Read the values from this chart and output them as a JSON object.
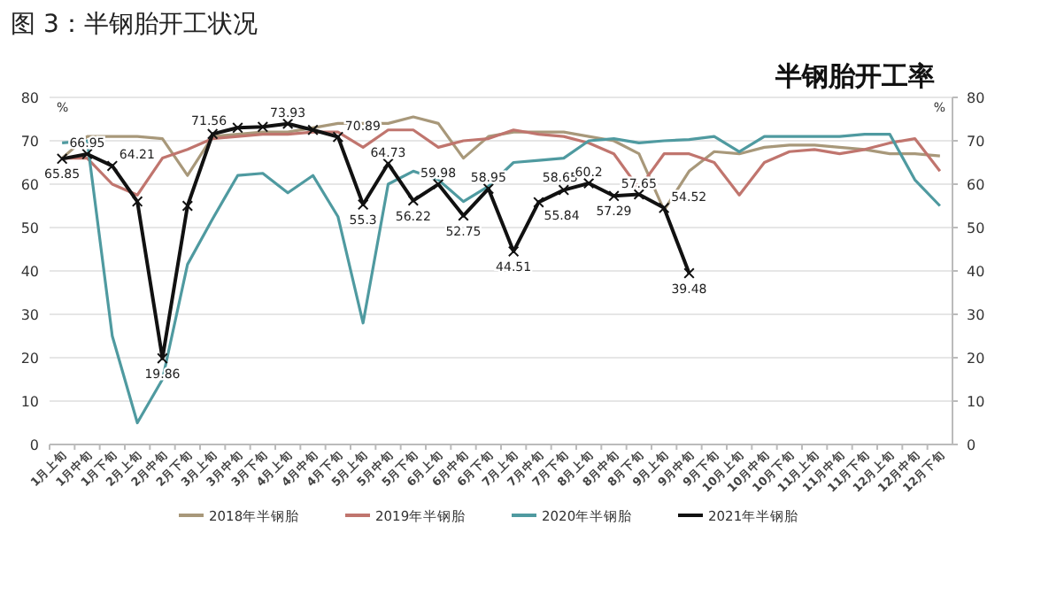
{
  "chart_data": {
    "type": "line",
    "title": "图 3：半钢胎开工状况",
    "subtitle": "半钢胎开工率",
    "ylabel": "%",
    "y2label": "%",
    "categories": [
      "1月上旬",
      "1月中旬",
      "1月下旬",
      "2月上旬",
      "2月中旬",
      "2月下旬",
      "3月上旬",
      "3月中旬",
      "3月下旬",
      "4月上旬",
      "4月中旬",
      "4月下旬",
      "5月上旬",
      "5月中旬",
      "5月下旬",
      "6月上旬",
      "6月中旬",
      "6月下旬",
      "7月上旬",
      "7月中旬",
      "7月下旬",
      "8月上旬",
      "8月中旬",
      "8月下旬",
      "9月上旬",
      "9月中旬",
      "9月下旬",
      "10月上旬",
      "10月中旬",
      "10月下旬",
      "11月上旬",
      "11月中旬",
      "11月下旬",
      "12月上旬",
      "12月中旬",
      "12月下旬"
    ],
    "ylim": [
      0,
      80
    ],
    "yticks": [
      0,
      10,
      20,
      30,
      40,
      50,
      60,
      70,
      80
    ],
    "y2lim": [
      0,
      80
    ],
    "y2ticks": [
      0,
      10,
      20,
      30,
      40,
      50,
      60,
      70,
      80
    ],
    "grid": "y",
    "legend": "bottom",
    "line_style": "solid",
    "series": [
      {
        "name": "2018年半钢胎",
        "color": "#a8987a",
        "marker": "none",
        "values": [
          66,
          71,
          71,
          71,
          70.5,
          62,
          71,
          71.5,
          72,
          72,
          73,
          74,
          74,
          74,
          75.5,
          74,
          66,
          71,
          72,
          72,
          72,
          71,
          70,
          67,
          54,
          63,
          67.5,
          67,
          68.5,
          69,
          69,
          68.5,
          68,
          67,
          67,
          66.5
        ]
      },
      {
        "name": "2019年半钢胎",
        "color": "#c0756e",
        "marker": "none",
        "values": [
          66,
          66,
          60,
          57.5,
          66,
          68,
          70.5,
          71,
          71.5,
          71.5,
          72,
          72,
          68.5,
          72.5,
          72.5,
          68.5,
          70,
          70.5,
          72.5,
          71.5,
          71,
          69.5,
          67,
          59,
          67,
          67,
          65,
          57.5,
          65,
          67.5,
          68,
          67,
          68,
          69.5,
          70.5,
          63
        ]
      },
      {
        "name": "2020年半钢胎",
        "color": "#4f9aa0",
        "marker": "none",
        "values": [
          69.5,
          70,
          25,
          5,
          15,
          41.5,
          52,
          62,
          62.5,
          58,
          62,
          52.5,
          28,
          60,
          63,
          61,
          56,
          59.5,
          65,
          65.5,
          66,
          70,
          70.5,
          69.5,
          70,
          70.3,
          71,
          67.5,
          71,
          71,
          71,
          71,
          71.5,
          71.5,
          61,
          55
        ]
      },
      {
        "name": "2021年半钢胎",
        "color": "#111111",
        "marker": "cross",
        "values": [
          65.85,
          66.95,
          64.21,
          56,
          19.86,
          55,
          71.56,
          73,
          73.2,
          73.93,
          72.5,
          70.89,
          55.3,
          64.73,
          56.22,
          59.98,
          52.75,
          58.95,
          44.51,
          55.84,
          58.65,
          60.2,
          57.29,
          57.65,
          54.52,
          39.48,
          null,
          null,
          null,
          null,
          null,
          null,
          null,
          null,
          null,
          null
        ],
        "value_labels": [
          "65.85",
          "66.95",
          "64.21",
          null,
          "19.86",
          null,
          "71.56",
          null,
          null,
          "73.93",
          null,
          "70.89",
          "55.3",
          "64.73",
          "56.22",
          "59.98",
          "52.75",
          "58.95",
          "44.51",
          "55.84",
          "58.65",
          "60.2",
          "57.29",
          "57.65",
          "54.52",
          "39.48",
          null,
          null,
          null,
          null,
          null,
          null,
          null,
          null,
          null,
          null
        ]
      }
    ]
  }
}
